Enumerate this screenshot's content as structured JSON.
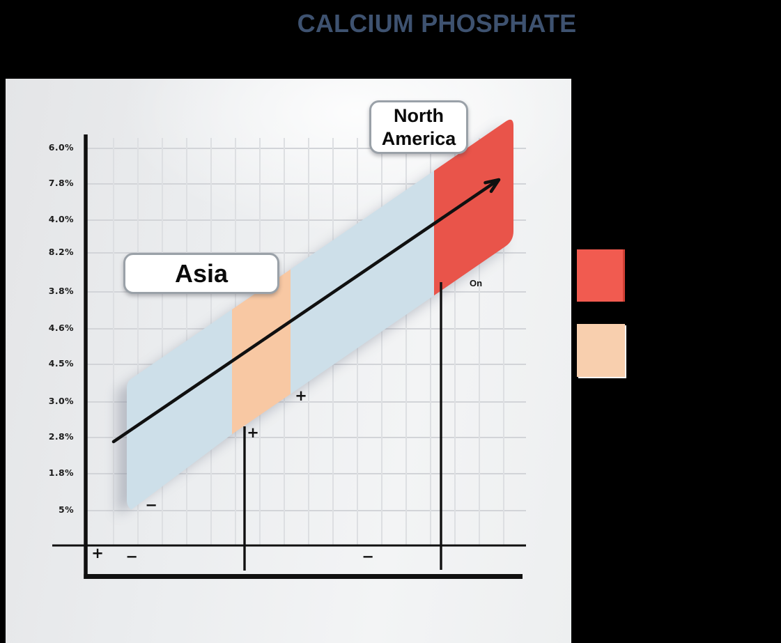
{
  "title": {
    "text": "CALCIUM PHOSPHATE",
    "color": "#3e5270"
  },
  "chart_data": {
    "type": "area",
    "title": "CALCIUM PHOSPHATE",
    "description": "Rising diagonal trend ribbon made of four colored segments with a black trend arrow through it, on a gridded plot panel; y-axis shows percentage tick labels; no x-axis tick labels are visible",
    "trend": "increasing",
    "y_tick_labels": [
      "6.0%",
      "7.8%",
      "4.0%",
      "8.2%",
      "3.8%",
      "4.6%",
      "4.5%",
      "3.0%",
      "2.8%",
      "1.8%",
      "5%"
    ],
    "x_tick_labels": [],
    "grid": true,
    "legend_position": "right",
    "band_segments": [
      {
        "label": "Asia",
        "color": "#cddfe9"
      },
      {
        "label": "",
        "color": "#f8c8a3"
      },
      {
        "label": "",
        "color": "#cddfe9"
      },
      {
        "label": "North America",
        "color": "#e9544a"
      }
    ],
    "annotations": {
      "region_labels": [
        "Asia",
        "North America"
      ],
      "point_label": "On",
      "sign_marks": [
        "+",
        "−",
        "−",
        "−",
        "+",
        "+"
      ]
    },
    "legend_swatches": [
      {
        "label": "",
        "color": "#f15b50"
      },
      {
        "label": "",
        "color": "#f8cfae"
      }
    ]
  },
  "labels": {
    "asia": "Asia",
    "north_america_line1": "North",
    "north_america_line2": "America",
    "on": "On"
  },
  "colors": {
    "background": "#000000",
    "axis": "#101010",
    "grid_h": "#d2d4d8",
    "grid_v": "#dddfe2",
    "shadow": "#7e8494",
    "box_border": "#9aa1a8"
  }
}
